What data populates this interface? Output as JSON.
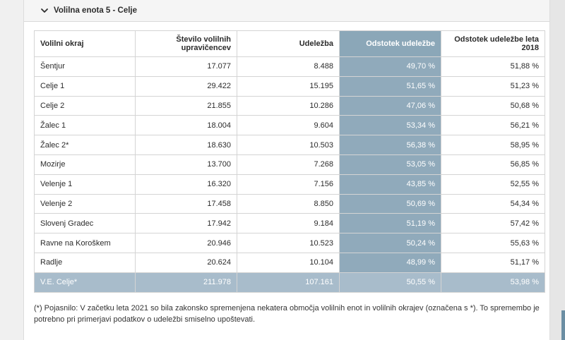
{
  "section": {
    "title": "Volilna enota 5 - Celje",
    "expanded_icon": "chevron-down-icon"
  },
  "table": {
    "headers": [
      "Volilni okraj",
      "Število volilnih upravičencev",
      "Udeležba",
      "Odstotek udeležbe",
      "Odstotek udeležbe leta 2018"
    ],
    "rows": [
      {
        "okraj": "Šentjur",
        "upravicenci": "17.077",
        "udelezba": "8.488",
        "odstotek": "49,70 %",
        "odstotek2018": "51,88 %"
      },
      {
        "okraj": "Celje 1",
        "upravicenci": "29.422",
        "udelezba": "15.195",
        "odstotek": "51,65 %",
        "odstotek2018": "51,23 %"
      },
      {
        "okraj": "Celje 2",
        "upravicenci": "21.855",
        "udelezba": "10.286",
        "odstotek": "47,06 %",
        "odstotek2018": "50,68 %"
      },
      {
        "okraj": "Žalec 1",
        "upravicenci": "18.004",
        "udelezba": "9.604",
        "odstotek": "53,34 %",
        "odstotek2018": "56,21 %"
      },
      {
        "okraj": "Žalec 2*",
        "upravicenci": "18.630",
        "udelezba": "10.503",
        "odstotek": "56,38 %",
        "odstotek2018": "58,95 %"
      },
      {
        "okraj": "Mozirje",
        "upravicenci": "13.700",
        "udelezba": "7.268",
        "odstotek": "53,05 %",
        "odstotek2018": "56,85 %"
      },
      {
        "okraj": "Velenje 1",
        "upravicenci": "16.320",
        "udelezba": "7.156",
        "odstotek": "43,85 %",
        "odstotek2018": "52,55 %"
      },
      {
        "okraj": "Velenje 2",
        "upravicenci": "17.458",
        "udelezba": "8.850",
        "odstotek": "50,69 %",
        "odstotek2018": "54,34 %"
      },
      {
        "okraj": "Slovenj Gradec",
        "upravicenci": "17.942",
        "udelezba": "9.184",
        "odstotek": "51,19 %",
        "odstotek2018": "57,42 %"
      },
      {
        "okraj": "Ravne na Koroškem",
        "upravicenci": "20.946",
        "udelezba": "10.523",
        "odstotek": "50,24 %",
        "odstotek2018": "55,63 %"
      },
      {
        "okraj": "Radlje",
        "upravicenci": "20.624",
        "udelezba": "10.104",
        "odstotek": "48,99 %",
        "odstotek2018": "51,17 %"
      }
    ],
    "total": {
      "okraj": "V.E. Celje*",
      "upravicenci": "211.978",
      "udelezba": "107.161",
      "odstotek": "50,55 %",
      "odstotek2018": "53,98 %"
    }
  },
  "note": "(*) Pojasnilo: V začetku leta 2021 so bila zakonsko spremenjena nekatera območja volilnih enot in volilnih okrajev (označena s *). To spremembo je potrebno pri primerjavi podatkov o udeležbi smiselno upoštevati.",
  "colors": {
    "highlight_column": "#90aabb",
    "total_row": "#a8bccb",
    "header_bg": "#f5f5f5"
  }
}
